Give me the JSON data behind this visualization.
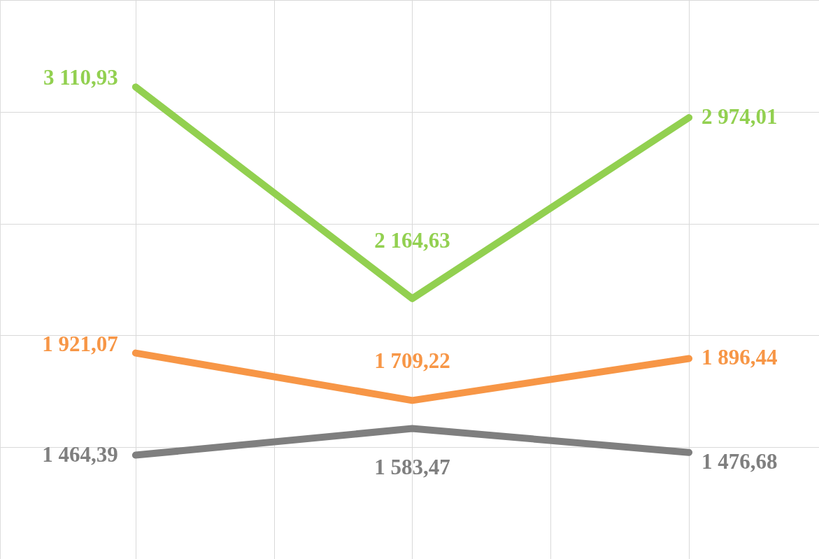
{
  "chart_data": {
    "type": "line",
    "categories": [
      null,
      null,
      null
    ],
    "series": [
      {
        "color": "#92d050",
        "values": [
          3110.93,
          2164.63,
          2974.01
        ],
        "value_labels": [
          "3 110,93",
          "2 164,63",
          "2 974,01"
        ]
      },
      {
        "color": "#f79646",
        "values": [
          1921.07,
          1709.22,
          1896.44
        ],
        "value_labels": [
          "1 921,07",
          "1 709,22",
          "1 896,44"
        ]
      },
      {
        "color": "#7f7f7f",
        "values": [
          1464.39,
          1583.47,
          1476.68
        ],
        "value_labels": [
          "1 464,39",
          "1 583,47",
          "1 476,68"
        ]
      }
    ],
    "ylim": [
      1000,
      3500
    ],
    "yticks": [
      {
        "value": 1000,
        "label": null
      },
      {
        "value": 1500,
        "label": null
      },
      {
        "value": 2000,
        "label": null
      },
      {
        "value": 2500,
        "label": null
      },
      {
        "value": 3000,
        "label": null
      },
      {
        "value": 3500,
        "label": null
      }
    ],
    "tick_labels": false,
    "grid": true,
    "line_style": "solid"
  }
}
